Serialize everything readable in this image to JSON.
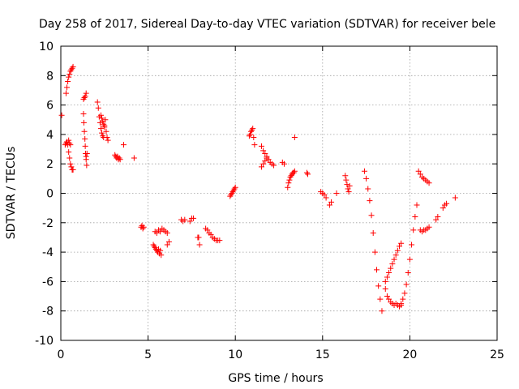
{
  "chart_data": {
    "type": "scatter",
    "title": "Day 258 of 2017, Sidereal Day-to-day VTEC variation (SDTVAR) for receiver bele",
    "xlabel": "GPS time / hours",
    "ylabel": "SDTVAR / TECUs",
    "xlim": [
      0,
      25
    ],
    "ylim": [
      -10,
      10
    ],
    "xticks": [
      0,
      5,
      10,
      15,
      20,
      25
    ],
    "yticks": [
      -10,
      -8,
      -6,
      -4,
      -2,
      0,
      2,
      4,
      6,
      8,
      10
    ],
    "grid": true,
    "marker": "+",
    "color": "#ff0000",
    "segments": [
      {
        "x": [
          0.05
        ],
        "y": [
          5.3
        ]
      },
      {
        "x": [
          0.25,
          0.3,
          0.35,
          0.4,
          0.45,
          0.5,
          0.55
        ],
        "y": [
          3.3,
          3.4,
          3.5,
          3.3,
          3.6,
          3.4,
          3.3
        ]
      },
      {
        "x": [
          0.3,
          0.35,
          0.4,
          0.45,
          0.5,
          0.55,
          0.6,
          0.65,
          0.7
        ],
        "y": [
          6.8,
          7.2,
          7.6,
          7.9,
          8.1,
          8.3,
          8.4,
          8.5,
          8.6
        ]
      },
      {
        "x": [
          0.45,
          0.5,
          0.55,
          0.6,
          0.65,
          0.7
        ],
        "y": [
          2.8,
          2.4,
          2.0,
          1.8,
          1.6,
          1.6
        ]
      },
      {
        "x": [
          1.3,
          1.32,
          1.35,
          1.38,
          1.4,
          1.42,
          1.45,
          1.48
        ],
        "y": [
          5.4,
          4.8,
          4.2,
          3.7,
          3.2,
          2.7,
          2.3,
          1.9
        ]
      },
      {
        "x": [
          1.3,
          1.35,
          1.4,
          1.45
        ],
        "y": [
          6.4,
          6.5,
          6.6,
          6.8
        ]
      },
      {
        "x": [
          1.45,
          1.5
        ],
        "y": [
          2.5,
          2.7
        ]
      },
      {
        "x": [
          2.1,
          2.15,
          2.2,
          2.25,
          2.3,
          2.35,
          2.4,
          2.45,
          2.5,
          2.55,
          2.6,
          2.65,
          2.7
        ],
        "y": [
          6.2,
          5.8,
          5.2,
          4.8,
          4.4,
          4.1,
          3.9,
          3.8,
          4.6,
          5.0,
          4.2,
          3.8,
          3.6
        ]
      },
      {
        "x": [
          2.3,
          2.35,
          2.4,
          2.45,
          2.5
        ],
        "y": [
          5.3,
          5.1,
          4.9,
          4.7,
          4.5
        ]
      },
      {
        "x": [
          3.1,
          3.15,
          3.2,
          3.25,
          3.3,
          3.35,
          3.4
        ],
        "y": [
          2.6,
          2.5,
          2.4,
          2.5,
          2.3,
          2.4,
          2.3
        ]
      },
      {
        "x": [
          3.6
        ],
        "y": [
          3.3
        ]
      },
      {
        "x": [
          4.2
        ],
        "y": [
          2.4
        ]
      },
      {
        "x": [
          4.6,
          4.65,
          4.7,
          4.75
        ],
        "y": [
          -2.3,
          -2.2,
          -2.4,
          -2.3
        ]
      },
      {
        "x": [
          5.3,
          5.35,
          5.4,
          5.45,
          5.5,
          5.55,
          5.6,
          5.65,
          5.7,
          5.75
        ],
        "y": [
          -3.5,
          -3.6,
          -3.7,
          -3.8,
          -3.9,
          -4.0,
          -3.8,
          -4.1,
          -3.9,
          -4.2
        ]
      },
      {
        "x": [
          5.4,
          5.5,
          5.6,
          5.7,
          5.8,
          5.9,
          6.0,
          6.1
        ],
        "y": [
          -2.6,
          -2.7,
          -2.5,
          -2.6,
          -2.4,
          -2.5,
          -2.6,
          -2.7
        ]
      },
      {
        "x": [
          6.1,
          6.2
        ],
        "y": [
          -3.5,
          -3.3
        ]
      },
      {
        "x": [
          6.9,
          7.0,
          7.1
        ],
        "y": [
          -1.8,
          -1.9,
          -1.8
        ]
      },
      {
        "x": [
          7.4,
          7.5,
          7.6
        ],
        "y": [
          -1.9,
          -1.7,
          -1.7
        ]
      },
      {
        "x": [
          7.85,
          7.9,
          7.95
        ],
        "y": [
          -3.0,
          -3.0,
          -3.5
        ]
      },
      {
        "x": [
          8.3,
          8.4,
          8.5,
          8.6,
          8.7,
          8.8,
          8.9,
          9.0,
          9.1
        ],
        "y": [
          -2.4,
          -2.5,
          -2.7,
          -2.8,
          -3.0,
          -3.1,
          -3.2,
          -3.2,
          -3.2
        ]
      },
      {
        "x": [
          9.7,
          9.75,
          9.8,
          9.85,
          9.9,
          9.95,
          10.0
        ],
        "y": [
          -0.2,
          -0.1,
          0.0,
          0.1,
          0.2,
          0.3,
          0.4
        ]
      },
      {
        "x": [
          10.8,
          10.85,
          10.9,
          10.95,
          11.0,
          11.05,
          11.1
        ],
        "y": [
          3.9,
          4.0,
          4.2,
          4.3,
          4.4,
          3.8,
          3.3
        ]
      },
      {
        "x": [
          11.5,
          11.6,
          11.7,
          11.8,
          11.9,
          12.0,
          12.1,
          12.2
        ],
        "y": [
          3.2,
          2.9,
          2.7,
          2.5,
          2.3,
          2.1,
          2.0,
          1.9
        ]
      },
      {
        "x": [
          11.5,
          11.6,
          11.7,
          11.8
        ],
        "y": [
          1.8,
          2.0,
          2.2,
          2.4
        ]
      },
      {
        "x": [
          12.7,
          12.8
        ],
        "y": [
          2.1,
          2.0
        ]
      },
      {
        "x": [
          13.0,
          13.05,
          13.1,
          13.15,
          13.2,
          13.25,
          13.3,
          13.35,
          13.4
        ],
        "y": [
          0.4,
          0.7,
          0.9,
          1.1,
          1.2,
          1.3,
          1.4,
          1.4,
          1.5
        ]
      },
      {
        "x": [
          13.4
        ],
        "y": [
          3.8
        ]
      },
      {
        "x": [
          14.1,
          14.15
        ],
        "y": [
          1.4,
          1.3
        ]
      },
      {
        "x": [
          14.9,
          15.0,
          15.1,
          15.2
        ],
        "y": [
          0.1,
          0.0,
          -0.1,
          -0.3
        ]
      },
      {
        "x": [
          15.4,
          15.5
        ],
        "y": [
          -0.8,
          -0.6
        ]
      },
      {
        "x": [
          15.8
        ],
        "y": [
          0.0
        ]
      },
      {
        "x": [
          16.3,
          16.35,
          16.4,
          16.45,
          16.5,
          16.55
        ],
        "y": [
          1.2,
          0.9,
          0.6,
          0.3,
          0.1,
          0.5
        ]
      },
      {
        "x": [
          17.4,
          17.5,
          17.6,
          17.7,
          17.8,
          17.9,
          18.0,
          18.1,
          18.2,
          18.3,
          18.4
        ],
        "y": [
          1.5,
          1.0,
          0.3,
          -0.5,
          -1.5,
          -2.7,
          -4.0,
          -5.2,
          -6.3,
          -7.2,
          -8.0
        ]
      },
      {
        "x": [
          18.6,
          18.7,
          18.8,
          18.9,
          19.0,
          19.1,
          19.2,
          19.3,
          19.4,
          19.5
        ],
        "y": [
          -6.5,
          -7.0,
          -7.2,
          -7.4,
          -7.5,
          -7.6,
          -7.5,
          -7.6,
          -7.7,
          -7.6
        ]
      },
      {
        "x": [
          18.6,
          18.7,
          18.8,
          18.9,
          19.0,
          19.1,
          19.2,
          19.3,
          19.4,
          19.5
        ],
        "y": [
          -6.0,
          -5.7,
          -5.4,
          -5.1,
          -4.8,
          -4.5,
          -4.2,
          -3.9,
          -3.6,
          -3.4
        ]
      },
      {
        "x": [
          19.5,
          19.6,
          19.7,
          19.8,
          19.9,
          20.0,
          20.1,
          20.2,
          20.3,
          20.4
        ],
        "y": [
          -7.5,
          -7.2,
          -6.8,
          -6.2,
          -5.4,
          -4.5,
          -3.5,
          -2.5,
          -1.6,
          -0.8
        ]
      },
      {
        "x": [
          20.5,
          20.6,
          20.7,
          20.8,
          20.9,
          21.0,
          21.1
        ],
        "y": [
          1.5,
          1.3,
          1.1,
          1.0,
          0.9,
          0.8,
          0.7
        ]
      },
      {
        "x": [
          20.6,
          20.7,
          20.8,
          20.9,
          21.0,
          21.1
        ],
        "y": [
          -2.5,
          -2.6,
          -2.5,
          -2.5,
          -2.4,
          -2.3
        ]
      },
      {
        "x": [
          21.5,
          21.6
        ],
        "y": [
          -1.8,
          -1.6
        ]
      },
      {
        "x": [
          21.9,
          22.0,
          22.1
        ],
        "y": [
          -1.0,
          -0.8,
          -0.7
        ]
      },
      {
        "x": [
          22.6
        ],
        "y": [
          -0.3
        ]
      }
    ]
  }
}
